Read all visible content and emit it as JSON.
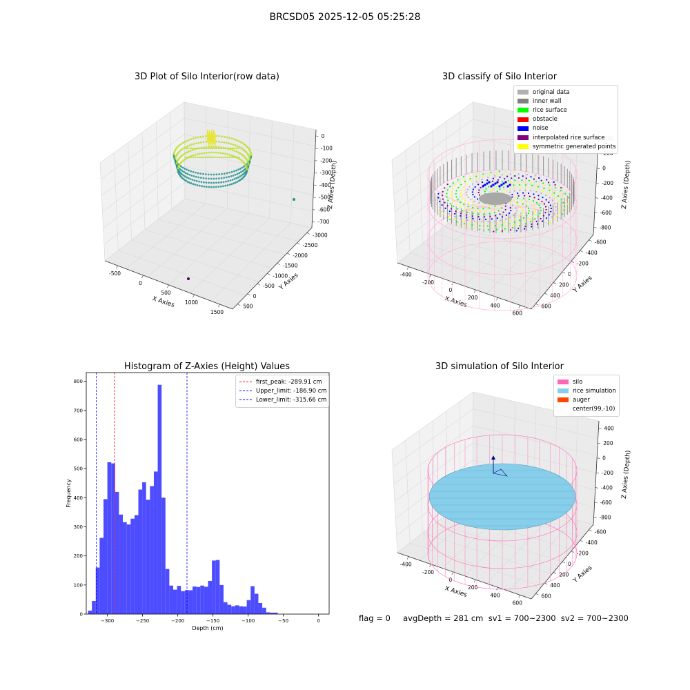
{
  "suptitle": "BRCSD05 2025-12-05 05:25:28",
  "footer": "flag = 0     avgDepth = 281 cm  sv1 = 700~2300  sv2 = 700~2300",
  "chart_data": [
    {
      "type": "scatter",
      "title": "3D Plot of Silo Interior(row data)",
      "xlabel": "X Axies",
      "ylabel": "Y Axies",
      "zlabel": "Z Axies (Depth)",
      "xticks": [
        "-500",
        "0",
        "500",
        "1000",
        "1500"
      ],
      "yticks": [
        "500",
        "0",
        "-500",
        "-1000",
        "-1500",
        "-2000",
        "-2500",
        "-3000"
      ],
      "zticks": [
        "0",
        "-100",
        "-200",
        "-300",
        "-400",
        "-500",
        "-600",
        "-700"
      ],
      "colors": {
        "point_low": "#21918c",
        "point_high": "#bddf26",
        "outlier": "#440154"
      }
    },
    {
      "type": "scatter",
      "title": "3D classify of Silo Interior",
      "xlabel": "X Axies",
      "ylabel": "Y Axies",
      "zlabel": "Z Axies (Depth)",
      "xticks": [
        "-400",
        "-200",
        "0",
        "200",
        "400",
        "600"
      ],
      "yticks": [
        "600",
        "400",
        "200",
        "0",
        "-200",
        "-400",
        "-600"
      ],
      "zticks": [
        "400",
        "200",
        "0",
        "-200",
        "-400",
        "-600",
        "-800"
      ],
      "legend": [
        {
          "label": "original data",
          "color": "#b0b0b0"
        },
        {
          "label": "inner wall",
          "color": "#808080"
        },
        {
          "label": "rice surface",
          "color": "#00ff00"
        },
        {
          "label": "obstacle",
          "color": "#ff0000"
        },
        {
          "label": "noise",
          "color": "#0000ff"
        },
        {
          "label": "interpolated rice surface",
          "color": "#800080"
        },
        {
          "label": "symmetric generated points",
          "color": "#ffff00"
        }
      ]
    },
    {
      "type": "bar",
      "title": "Histogram of Z-Axies (Height) Values",
      "xlabel": "Depth (cm)",
      "ylabel": "Frequency",
      "xlim": [
        -330,
        15
      ],
      "ylim": [
        0,
        830
      ],
      "xticks": [
        -300,
        -250,
        -200,
        -150,
        -100,
        -50,
        0
      ],
      "yticks": [
        0,
        100,
        200,
        300,
        400,
        500,
        600,
        700,
        800
      ],
      "bar_color": "#4d4dff",
      "bin_start": -327.5,
      "bin_width": 5.5,
      "values": [
        12,
        45,
        160,
        262,
        395,
        522,
        518,
        420,
        342,
        316,
        308,
        328,
        340,
        428,
        453,
        393,
        440,
        490,
        788,
        400,
        155,
        98,
        84,
        97,
        79,
        82,
        82,
        95,
        93,
        98,
        94,
        114,
        184,
        186,
        100,
        41,
        32,
        27,
        30,
        27,
        26,
        48,
        96,
        70,
        38,
        22,
        6,
        5,
        5
      ],
      "vlines": [
        {
          "label": "first_peak: -289.91 cm",
          "x": -289.91,
          "color": "#ff0000"
        },
        {
          "label": "Upper_limit: -186.90 cm",
          "x": -186.9,
          "color": "#0000ff"
        },
        {
          "label": "Lower_limit: -315.66 cm",
          "x": -315.66,
          "color": "#0000ff"
        }
      ]
    },
    {
      "type": "scatter",
      "title": "3D simulation of Silo Interior",
      "xlabel": "X Axies",
      "ylabel": "Y Axies",
      "zlabel": "Z Axies (Depth)",
      "xticks": [
        "-400",
        "-200",
        "0",
        "200",
        "400",
        "600"
      ],
      "yticks": [
        "600",
        "400",
        "200",
        "0",
        "-200",
        "-400",
        "-600"
      ],
      "zticks": [
        "400",
        "200",
        "0",
        "-200",
        "-400",
        "-600",
        "-800"
      ],
      "legend": [
        {
          "label": "silo",
          "color": "#ff69b4"
        },
        {
          "label": "rice simulation",
          "color": "#87ceeb"
        },
        {
          "label": "auger",
          "color": "#ff4500"
        },
        {
          "label": "center(99,-10)",
          "color": ""
        }
      ]
    }
  ]
}
